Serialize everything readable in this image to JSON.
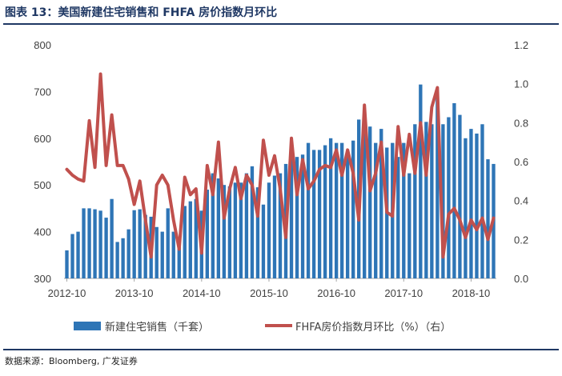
{
  "header": {
    "title": "图表 13：美国新建住宅销售和 FHFA 房价指数月环比"
  },
  "footer": {
    "source": "数据来源：Bloomberg, 广发证券"
  },
  "colors": {
    "bar": "#2e75b6",
    "line": "#c0504d",
    "axis": "#a6a6a6",
    "title": "#1f3864"
  },
  "chart_data": {
    "type": "bar+line",
    "x_ticks": [
      "2012-10",
      "2013-10",
      "2014-10",
      "2015-10",
      "2016-10",
      "2017-10",
      "2018-10"
    ],
    "x_start": "2012-10",
    "y_left": {
      "min": 300,
      "max": 800,
      "ticks": [
        300,
        400,
        500,
        600,
        700,
        800
      ]
    },
    "y_right": {
      "min": 0.0,
      "max": 1.2,
      "ticks": [
        "0.0",
        "0.2",
        "0.4",
        "0.6",
        "0.8",
        "1.0",
        "1.2"
      ]
    },
    "legend": {
      "bar_label": "新建住宅销售（千套）",
      "line_label": "FHFA房价指数月环比（%）（右）"
    },
    "series": [
      {
        "name": "新建住宅销售（千套）",
        "type": "bar",
        "axis": "left",
        "values": [
          360,
          395,
          400,
          450,
          450,
          448,
          445,
          430,
          470,
          378,
          386,
          405,
          446,
          448,
          436,
          432,
          410,
          400,
          450,
          400,
          380,
          455,
          465,
          470,
          445,
          490,
          525,
          514,
          500,
          497,
          505,
          505,
          525,
          540,
          495,
          458,
          505,
          520,
          525,
          545,
          565,
          560,
          565,
          590,
          575,
          575,
          585,
          600,
          590,
          590,
          565,
          595,
          640,
          610,
          625,
          590,
          620,
          580,
          590,
          560,
          590,
          525,
          630,
          715,
          635,
          630,
          687,
          630,
          645,
          675,
          650,
          600,
          620,
          610,
          630,
          555,
          545
        ]
      },
      {
        "name": "FHFA房价指数月环比（%）（右）",
        "type": "line",
        "axis": "right",
        "values": [
          0.56,
          0.53,
          0.51,
          0.5,
          0.81,
          0.57,
          1.05,
          0.58,
          0.84,
          0.58,
          0.58,
          0.51,
          0.38,
          0.5,
          0.3,
          0.11,
          0.48,
          0.53,
          0.48,
          0.3,
          0.15,
          0.52,
          0.43,
          0.46,
          0.13,
          0.58,
          0.43,
          0.7,
          0.31,
          0.46,
          0.57,
          0.41,
          0.53,
          0.48,
          0.32,
          0.71,
          0.53,
          0.63,
          0.46,
          0.21,
          0.72,
          0.43,
          0.61,
          0.46,
          0.5,
          0.56,
          0.58,
          0.57,
          0.66,
          0.53,
          0.66,
          0.54,
          0.3,
          0.89,
          0.45,
          0.54,
          0.7,
          0.34,
          0.32,
          0.78,
          0.53,
          0.74,
          0.54,
          0.8,
          0.53,
          0.88,
          0.98,
          0.11,
          0.33,
          0.36,
          0.3,
          0.21,
          0.3,
          0.25,
          0.31,
          0.2,
          0.31
        ]
      }
    ]
  }
}
